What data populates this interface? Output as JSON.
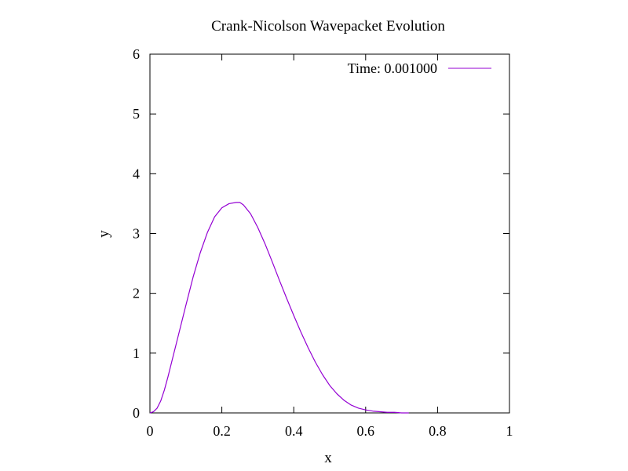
{
  "chart_data": {
    "type": "line",
    "title": "Crank-Nicolson Wavepacket Evolution",
    "xlabel": "x",
    "ylabel": "y",
    "xlim": [
      0,
      1
    ],
    "ylim": [
      0,
      6
    ],
    "x_ticks": [
      "0",
      "0.2",
      "0.4",
      "0.6",
      "0.8",
      "1"
    ],
    "x_tick_values": [
      0,
      0.2,
      0.4,
      0.6,
      0.8,
      1
    ],
    "y_ticks": [
      "0",
      "1",
      "2",
      "3",
      "4",
      "5",
      "6"
    ],
    "y_tick_values": [
      0,
      1,
      2,
      3,
      4,
      5,
      6
    ],
    "grid": false,
    "legend_position": "top-right",
    "series": [
      {
        "name": "Time: 0.001000",
        "color": "#9400d3",
        "x": [
          0,
          0.01,
          0.02,
          0.03,
          0.04,
          0.05,
          0.06,
          0.08,
          0.1,
          0.12,
          0.14,
          0.16,
          0.18,
          0.2,
          0.22,
          0.24,
          0.25,
          0.26,
          0.28,
          0.3,
          0.32,
          0.34,
          0.36,
          0.38,
          0.4,
          0.42,
          0.44,
          0.46,
          0.48,
          0.5,
          0.52,
          0.54,
          0.56,
          0.58,
          0.6,
          0.62,
          0.64,
          0.66,
          0.68,
          0.7,
          0.72
        ],
        "y": [
          0.0,
          0.02,
          0.08,
          0.2,
          0.38,
          0.6,
          0.84,
          1.32,
          1.8,
          2.27,
          2.68,
          3.02,
          3.28,
          3.43,
          3.5,
          3.52,
          3.52,
          3.48,
          3.33,
          3.1,
          2.83,
          2.53,
          2.22,
          1.92,
          1.63,
          1.35,
          1.09,
          0.85,
          0.64,
          0.46,
          0.32,
          0.21,
          0.13,
          0.08,
          0.05,
          0.03,
          0.02,
          0.01,
          0.01,
          0.0,
          0.0
        ]
      }
    ]
  }
}
